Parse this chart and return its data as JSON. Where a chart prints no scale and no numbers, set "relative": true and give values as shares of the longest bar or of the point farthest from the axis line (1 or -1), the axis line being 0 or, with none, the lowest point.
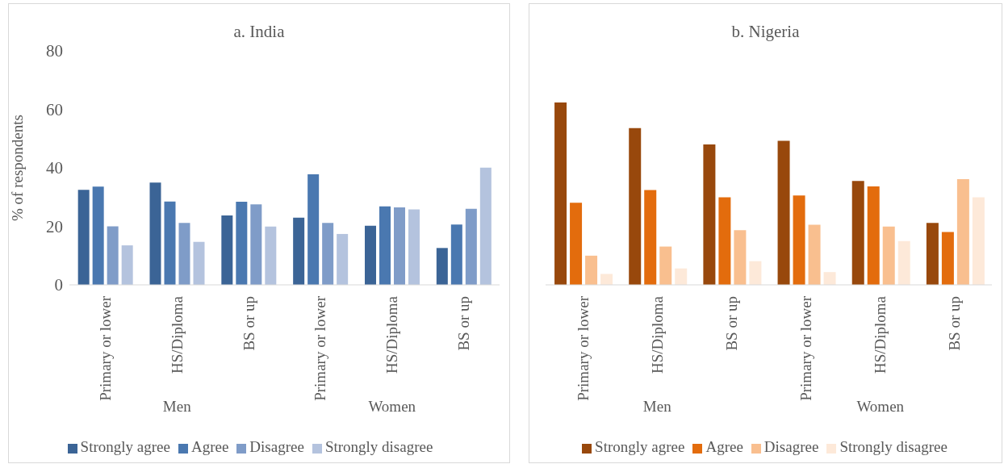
{
  "chart_data": [
    {
      "type": "bar",
      "title": "a. India",
      "ylabel": "% of respondents",
      "categories": [
        "Primary or lower",
        "HS/Diploma",
        "BS or up",
        "Primary or lower",
        "HS/Diploma",
        "BS or up"
      ],
      "annotations": [
        "Men",
        "Women"
      ],
      "ylim": [
        0,
        80
      ],
      "yticks": [
        0,
        20,
        40,
        60,
        80
      ],
      "legend": "bottom",
      "series": [
        {
          "name": "Strongly agree",
          "color": "#3b6496",
          "values": [
            32.5,
            35,
            23.7,
            23,
            20.2,
            12.6
          ]
        },
        {
          "name": "Agree",
          "color": "#4a78b0",
          "values": [
            33.6,
            28.5,
            28.4,
            37.8,
            26.8,
            20.6
          ]
        },
        {
          "name": "Disagree",
          "color": "#7f9cc8",
          "values": [
            20,
            21.2,
            27.5,
            21.2,
            26.5,
            26
          ]
        },
        {
          "name": "Strongly disagree",
          "color": "#b4c3de",
          "values": [
            13.5,
            14.7,
            19.9,
            17.4,
            25.8,
            40.1
          ]
        }
      ]
    },
    {
      "type": "bar",
      "title": "b. Nigeria",
      "relative": true,
      "tick_labels": "x",
      "categories": [
        "Primary or lower",
        "HS/Diploma",
        "BS or up",
        "Primary or lower",
        "HS/Diploma",
        "BS or up"
      ],
      "annotations": [
        "Men",
        "Women"
      ],
      "legend": "bottom",
      "series": [
        {
          "name": "Strongly agree",
          "color": "#98480c",
          "values": [
            1,
            0.86,
            0.77,
            0.79,
            0.57,
            0.34
          ]
        },
        {
          "name": "Agree",
          "color": "#e36c0d",
          "values": [
            0.45,
            0.52,
            0.48,
            0.49,
            0.54,
            0.29
          ]
        },
        {
          "name": "Disagree",
          "color": "#f9bf8f",
          "values": [
            0.16,
            0.21,
            0.3,
            0.33,
            0.32,
            0.58
          ]
        },
        {
          "name": "Strongly disagree",
          "color": "#fde9d9",
          "values": [
            0.06,
            0.09,
            0.13,
            0.07,
            0.24,
            0.48
          ]
        }
      ]
    }
  ]
}
